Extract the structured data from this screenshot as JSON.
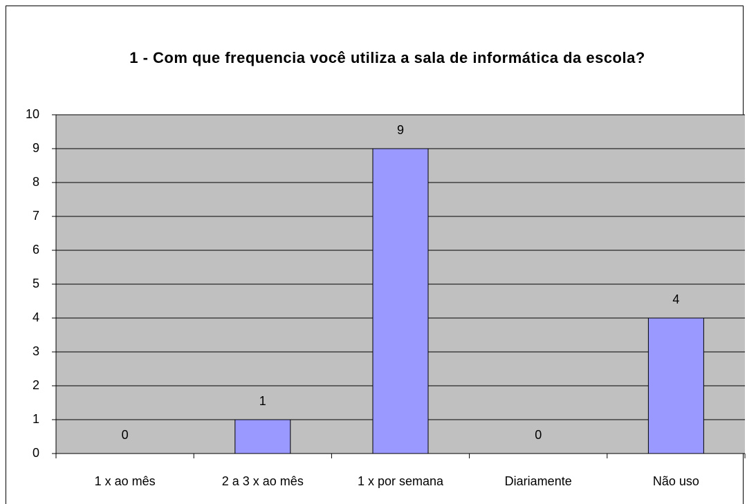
{
  "chart_data": {
    "type": "bar",
    "title": "1 - Com que frequencia você utiliza a sala de informática da escola?",
    "categories": [
      "1 x ao mês",
      "2 a 3 x ao mês",
      "1 x por semana",
      "Diariamente",
      "Não uso"
    ],
    "values": [
      0,
      1,
      9,
      0,
      4
    ],
    "color": "#9999ff",
    "plot_background": "#c0c0c0",
    "ylim": [
      0,
      10
    ],
    "yticks": [
      0,
      1,
      2,
      3,
      4,
      5,
      6,
      7,
      8,
      9,
      10
    ],
    "grid": true
  }
}
